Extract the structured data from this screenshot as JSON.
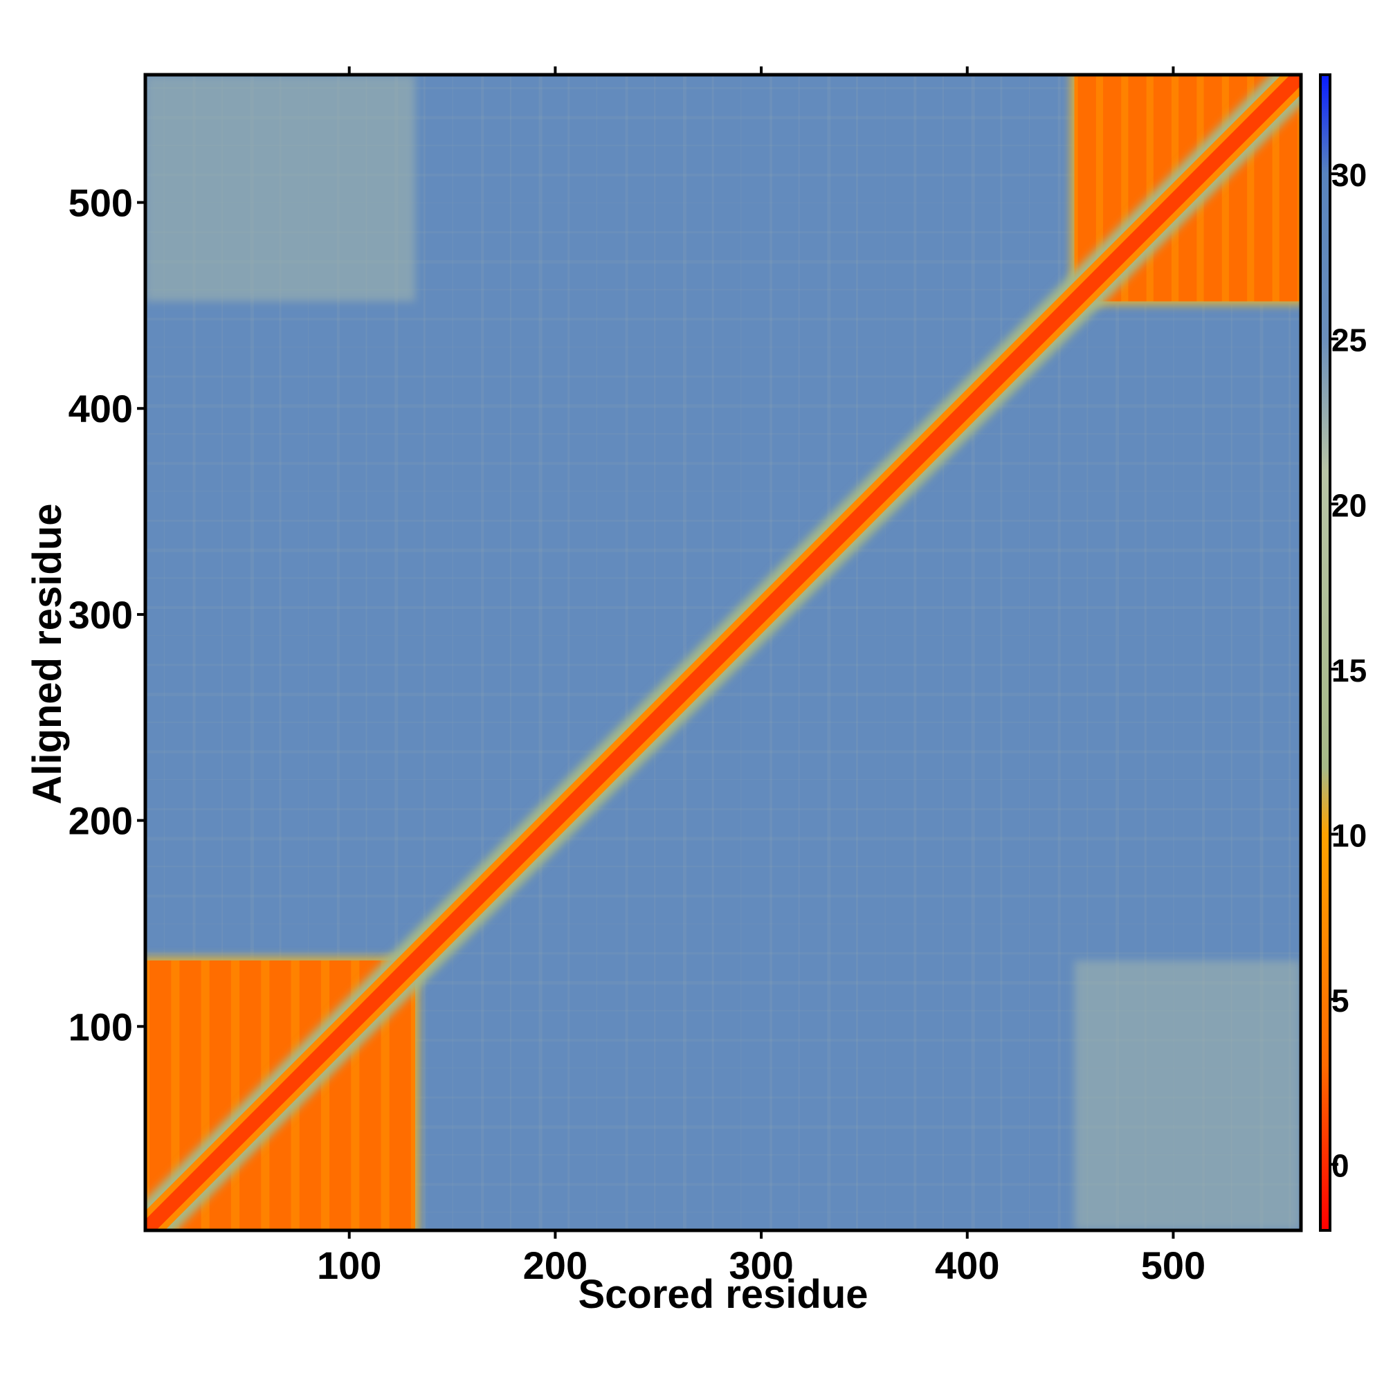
{
  "chart_data": {
    "type": "heatmap",
    "title": "",
    "xlabel": "Scored residue",
    "ylabel": "Aligned residue",
    "xlim": [
      1,
      562
    ],
    "ylim": [
      1,
      562
    ],
    "xticks": [
      "100",
      "200",
      "300",
      "400",
      "500"
    ],
    "xtick_values": [
      100,
      200,
      300,
      400,
      500
    ],
    "yticks": [
      "100",
      "200",
      "300",
      "400",
      "500"
    ],
    "ytick_values": [
      100,
      200,
      300,
      400,
      500
    ],
    "colorbar": {
      "range": [
        -2,
        33
      ],
      "ticks": [
        "0",
        "5",
        "10",
        "15",
        "20",
        "25",
        "30"
      ],
      "tick_values": [
        0,
        5,
        10,
        15,
        20,
        25,
        30
      ],
      "colors": [
        "#ff0000",
        "#ff6a00",
        "#ffa200",
        "#a6b988",
        "#b8c4a6",
        "#6b8fbc",
        "#5884be",
        "#0a1dff"
      ],
      "stops": [
        -2,
        3,
        10,
        12,
        21,
        25,
        30,
        33
      ]
    },
    "domains": [
      {
        "start": 1,
        "end": 132,
        "intra_error": 3
      },
      {
        "start": 452,
        "end": 562,
        "intra_error": 3
      }
    ],
    "diagonal_error": 1,
    "background_error": 27,
    "off_domain_error": 22,
    "colors": {
      "low_error": "#ff2200",
      "mid_error": "#ff8c00",
      "high_error": "#5a86bd",
      "frame": "#000000"
    }
  }
}
